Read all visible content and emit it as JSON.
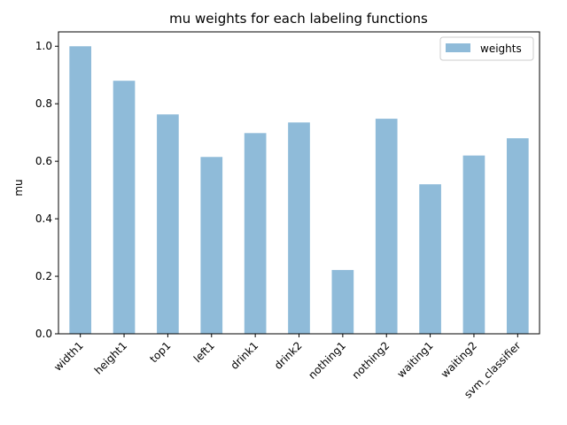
{
  "chart_data": {
    "type": "bar",
    "title": "mu weights for each labeling functions",
    "xlabel": "",
    "ylabel": "mu",
    "categories": [
      "width1",
      "height1",
      "top1",
      "left1",
      "drink1",
      "drink2",
      "nothing1",
      "nothing2",
      "waiting1",
      "waiting2",
      "svm_classifier"
    ],
    "series": [
      {
        "name": "weights",
        "values": [
          1.0,
          0.88,
          0.763,
          0.615,
          0.698,
          0.735,
          0.222,
          0.748,
          0.52,
          0.62,
          0.68
        ],
        "color": "#8fbbd9"
      }
    ],
    "ylim": [
      0,
      1.05
    ],
    "yticks": [
      "0.0",
      "0.2",
      "0.4",
      "0.6",
      "0.8",
      "1.0"
    ],
    "grid": false,
    "legend_position": "top-right"
  }
}
